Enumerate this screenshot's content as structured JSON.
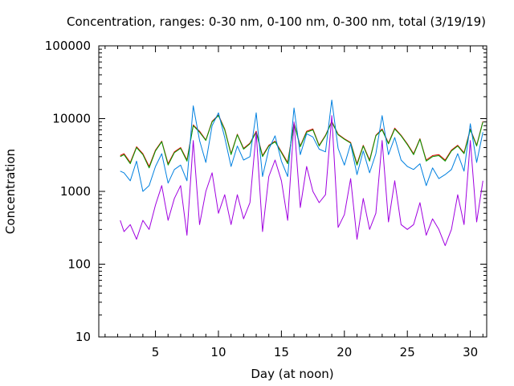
{
  "chart_data": {
    "type": "line",
    "title": "Concentration, ranges: 0-30 nm, 0-100 nm, 0-300 nm, total (3/19/19)",
    "xlabel": "Day (at noon)",
    "ylabel": "Concentration",
    "xlim": [
      0.5,
      31.3
    ],
    "ylim": [
      10,
      100000
    ],
    "yscale": "log",
    "grid": false,
    "xticks": [
      5,
      10,
      15,
      20,
      25,
      30
    ],
    "yticks": [
      10,
      100,
      1000,
      10000,
      100000
    ],
    "xtick_labels": [
      "5",
      "10",
      "15",
      "20",
      "25",
      "30"
    ],
    "ytick_labels": [
      "10",
      "100",
      "1000",
      "10000",
      "100000"
    ],
    "series": [
      {
        "color": "#00a000",
        "x": [
          2.2,
          2.5,
          3,
          3.5,
          4,
          4.5,
          5,
          5.5,
          6,
          6.5,
          7,
          7.5,
          8,
          8.5,
          9,
          9.5,
          10,
          10.5,
          11,
          11.5,
          12,
          12.5,
          13,
          13.5,
          14,
          14.5,
          15,
          15.5,
          16,
          16.5,
          17,
          17.5,
          18,
          18.5,
          19,
          19.5,
          20,
          20.5,
          21,
          21.5,
          22,
          22.5,
          23,
          23.5,
          24,
          24.5,
          25,
          25.5,
          26,
          26.5,
          27,
          27.5,
          28,
          28.5,
          29,
          29.5,
          30,
          30.5,
          31
        ],
        "values": [
          3000,
          3200,
          2400,
          4000,
          3200,
          2100,
          3600,
          4800,
          2300,
          3400,
          3900,
          2600,
          8000,
          6500,
          5000,
          9000,
          11000,
          7000,
          3200,
          6000,
          3800,
          4500,
          6500,
          3000,
          4200,
          4800,
          3400,
          2400,
          8500,
          4100,
          6500,
          7000,
          4200,
          5800,
          9000,
          6000,
          5200,
          4600,
          2300,
          4200,
          2600,
          5800,
          7000,
          4500,
          7200,
          5800,
          4400,
          3200,
          5200,
          2600,
          3000,
          3100,
          2600,
          3600,
          4200,
          3300,
          7000,
          4200,
          9000
        ]
      },
      {
        "color": "#0080e0",
        "x": [
          2.2,
          2.5,
          3,
          3.5,
          4,
          4.5,
          5,
          5.5,
          6,
          6.5,
          7,
          7.5,
          8,
          8.5,
          9,
          9.5,
          10,
          10.5,
          11,
          11.5,
          12,
          12.5,
          13,
          13.5,
          14,
          14.5,
          15,
          15.5,
          16,
          16.5,
          17,
          17.5,
          18,
          18.5,
          19,
          19.5,
          20,
          20.5,
          21,
          21.5,
          22,
          22.5,
          23,
          23.5,
          24,
          24.5,
          25,
          25.5,
          26,
          26.5,
          27,
          27.5,
          28,
          28.5,
          29,
          29.5,
          30,
          30.5,
          31
        ],
        "values": [
          1900,
          1800,
          1400,
          2600,
          1000,
          1200,
          2200,
          3300,
          1300,
          2000,
          2300,
          1400,
          15000,
          5000,
          2500,
          8000,
          12000,
          5500,
          2200,
          4200,
          2700,
          3000,
          12000,
          1600,
          3800,
          5800,
          2600,
          1600,
          14000,
          3200,
          6200,
          5600,
          3800,
          3500,
          18000,
          3900,
          2300,
          4500,
          1700,
          3600,
          1800,
          3300,
          11000,
          3200,
          5500,
          2700,
          2200,
          2000,
          2400,
          1200,
          2100,
          1500,
          1700,
          2000,
          3300,
          1900,
          8500,
          2500,
          6500
        ]
      },
      {
        "color": "#a000e0",
        "x": [
          2.2,
          2.5,
          3,
          3.5,
          4,
          4.5,
          5,
          5.5,
          6,
          6.5,
          7,
          7.5,
          8,
          8.5,
          9,
          9.5,
          10,
          10.5,
          11,
          11.5,
          12,
          12.5,
          13,
          13.5,
          14,
          14.5,
          15,
          15.5,
          16,
          16.5,
          17,
          17.5,
          18,
          18.5,
          19,
          19.5,
          20,
          20.5,
          21,
          21.5,
          22,
          22.5,
          23,
          23.5,
          24,
          24.5,
          25,
          25.5,
          26,
          26.5,
          27,
          27.5,
          28,
          28.5,
          29,
          29.5,
          30,
          30.5,
          31
        ],
        "values": [
          400,
          280,
          350,
          220,
          400,
          300,
          650,
          1200,
          400,
          800,
          1200,
          250,
          5000,
          350,
          1000,
          1800,
          500,
          900,
          350,
          900,
          420,
          700,
          6500,
          280,
          1600,
          2700,
          1400,
          400,
          9000,
          600,
          2200,
          1000,
          700,
          900,
          11000,
          320,
          480,
          1500,
          220,
          800,
          300,
          500,
          5000,
          380,
          1400,
          350,
          300,
          350,
          700,
          250,
          420,
          300,
          180,
          300,
          900,
          350,
          5000,
          380,
          1400
        ]
      },
      {
        "color": "#e00000",
        "x": [
          2.2,
          2.5,
          3,
          3.5,
          4,
          4.5,
          5,
          5.5,
          6,
          6.5,
          7,
          7.5,
          8,
          8.5,
          9,
          9.5,
          10,
          10.5,
          11,
          11.5,
          12,
          12.5,
          13,
          13.5,
          14,
          14.5,
          15,
          15.5,
          16,
          16.5,
          17,
          17.5,
          18,
          18.5,
          19,
          19.5,
          20,
          20.5,
          21,
          21.5,
          22,
          22.5,
          23,
          23.5,
          24,
          24.5,
          25,
          25.5,
          26,
          26.5,
          27,
          27.5,
          28,
          28.5,
          29,
          29.5,
          30,
          30.5,
          31
        ],
        "values": [
          3100,
          3300,
          2500,
          4100,
          3300,
          2200,
          3700,
          4900,
          2400,
          3500,
          4000,
          2700,
          8200,
          6700,
          5100,
          9200,
          11200,
          7200,
          3300,
          6100,
          3900,
          4600,
          6700,
          3100,
          4300,
          4900,
          3500,
          2500,
          8700,
          4200,
          6700,
          7200,
          4300,
          5900,
          9200,
          6100,
          5300,
          4700,
          2400,
          4300,
          2700,
          5900,
          7200,
          4600,
          7400,
          5900,
          4500,
          3300,
          5300,
          2700,
          3100,
          3200,
          2700,
          3700,
          4300,
          3400,
          7200,
          4300,
          9200
        ]
      }
    ]
  }
}
